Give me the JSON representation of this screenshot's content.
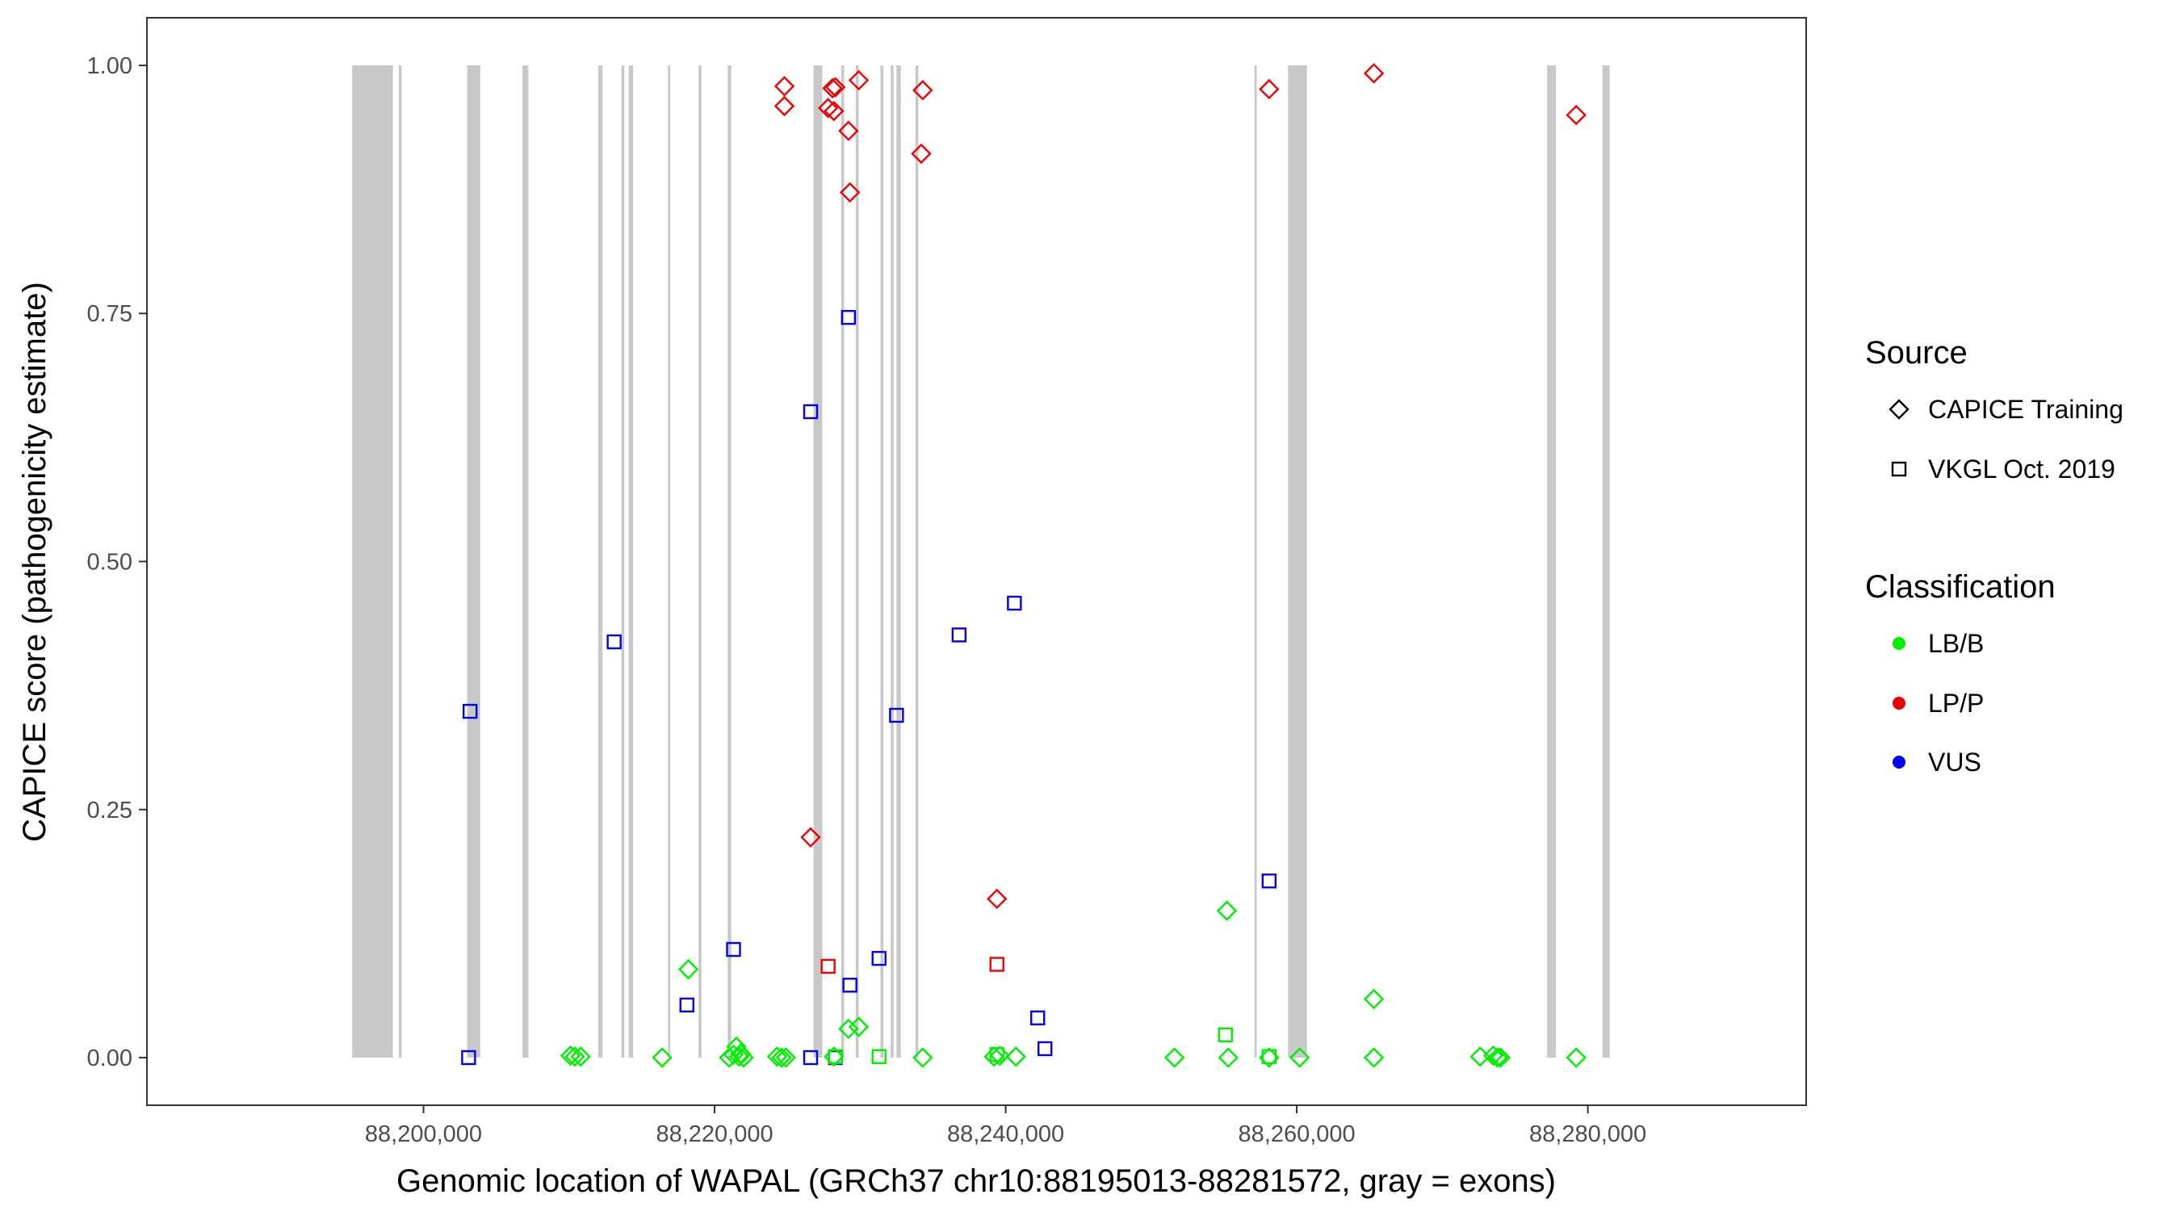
{
  "chart_data": {
    "type": "scatter",
    "title": "",
    "xlabel": "Genomic location of WAPAL (GRCh37 chr10:88195013-88281572, gray = exons)",
    "ylabel": "CAPICE score (pathogenicity estimate)",
    "xlim": [
      88181000,
      88295000
    ],
    "ylim": [
      -0.048,
      1.048
    ],
    "x_ticks": [
      88200000,
      88220000,
      88240000,
      88260000,
      88280000
    ],
    "x_tick_labels": [
      "88,200,000",
      "88,220,000",
      "88,240,000",
      "88,260,000",
      "88,280,000"
    ],
    "y_ticks": [
      0,
      0.25,
      0.5,
      0.75,
      1.0
    ],
    "y_tick_labels": [
      "0.00",
      "0.25",
      "0.50",
      "0.75",
      "1.00"
    ],
    "grid": false,
    "exons": [
      {
        "start": 88195100,
        "end": 88197900
      },
      {
        "start": 88198300,
        "end": 88198500
      },
      {
        "start": 88203000,
        "end": 88203900
      },
      {
        "start": 88206800,
        "end": 88207200
      },
      {
        "start": 88212000,
        "end": 88212300
      },
      {
        "start": 88213600,
        "end": 88213800
      },
      {
        "start": 88214100,
        "end": 88214400
      },
      {
        "start": 88216800,
        "end": 88216950
      },
      {
        "start": 88218900,
        "end": 88219100
      },
      {
        "start": 88220900,
        "end": 88221150
      },
      {
        "start": 88226800,
        "end": 88227400
      },
      {
        "start": 88228700,
        "end": 88228900
      },
      {
        "start": 88229700,
        "end": 88229900
      },
      {
        "start": 88231400,
        "end": 88231600
      },
      {
        "start": 88232100,
        "end": 88232300
      },
      {
        "start": 88232500,
        "end": 88232800
      },
      {
        "start": 88233800,
        "end": 88234000
      },
      {
        "start": 88257100,
        "end": 88257250
      },
      {
        "start": 88259400,
        "end": 88260700
      },
      {
        "start": 88277200,
        "end": 88277800
      },
      {
        "start": 88281000,
        "end": 88281500
      }
    ],
    "legends": {
      "source": {
        "title": "Source",
        "entries": [
          {
            "key": "CAPICE Training",
            "label": "CAPICE Training",
            "shape": "diamond"
          },
          {
            "key": "VKGL Oct. 2019",
            "label": "VKGL Oct. 2019",
            "shape": "square"
          }
        ]
      },
      "classification": {
        "title": "Classification",
        "entries": [
          {
            "key": "LB/B",
            "label": "LB/B",
            "color": "#00ee00"
          },
          {
            "key": "LP/P",
            "label": "LP/P",
            "color": "#ee0000"
          },
          {
            "key": "VUS",
            "label": "VUS",
            "color": "#0000ee"
          }
        ]
      }
    },
    "legend_position": "right",
    "series": [
      {
        "source": "CAPICE Training",
        "classification": "LP/P",
        "x": [
          88224800,
          88224800,
          88227800,
          88228200,
          88228100,
          88228300,
          88229200,
          88229900,
          88234300,
          88234200,
          88229300,
          88226600,
          88239400,
          88258100,
          88265300,
          88279200
        ],
        "y": [
          0.979,
          0.959,
          0.957,
          0.954,
          0.977,
          0.978,
          0.934,
          0.985,
          0.975,
          0.911,
          0.872,
          0.222,
          0.16,
          0.976,
          0.992,
          0.95
        ]
      },
      {
        "source": "VKGL Oct. 2019",
        "classification": "LP/P",
        "x": [
          88227800,
          88239400
        ],
        "y": [
          0.092,
          0.094
        ]
      },
      {
        "source": "VKGL Oct. 2019",
        "classification": "VUS",
        "x": [
          88203200,
          88203100,
          88213100,
          88218100,
          88221300,
          88226600,
          88226600,
          88228300,
          88229200,
          88229300,
          88231300,
          88232500,
          88236800,
          88240600,
          88242200,
          88242700,
          88258100
        ],
        "y": [
          0.349,
          0.0,
          0.419,
          0.053,
          0.109,
          0.651,
          0.0,
          0.0,
          0.746,
          0.073,
          0.1,
          0.345,
          0.426,
          0.458,
          0.04,
          0.009,
          0.178
        ]
      },
      {
        "source": "CAPICE Training",
        "classification": "LB/B",
        "x": [
          88210100,
          88210400,
          88210800,
          88216400,
          88218200,
          88221000,
          88221300,
          88221500,
          88221800,
          88222000,
          88221700,
          88224300,
          88224600,
          88224900,
          88228200,
          88229200,
          88229900,
          88234300,
          88239200,
          88239600,
          88240700,
          88251600,
          88255200,
          88255300,
          88258100,
          88260200,
          88265300,
          88265300,
          88272600,
          88273500,
          88273800,
          88274000,
          88279200
        ],
        "y": [
          0.002,
          0.001,
          0.001,
          0.0,
          0.089,
          0.0,
          0.003,
          0.011,
          0.004,
          0.0,
          0.001,
          0.001,
          0.0,
          0.0,
          0.001,
          0.029,
          0.031,
          0.0,
          0.001,
          0.002,
          0.001,
          0.0,
          0.148,
          0.0,
          0.0,
          0.0,
          0.059,
          0.0,
          0.001,
          0.002,
          0.0,
          0.0,
          0.0
        ]
      },
      {
        "source": "VKGL Oct. 2019",
        "classification": "LB/B",
        "x": [
          88228300,
          88231300,
          88239400,
          88255100,
          88258100
        ],
        "y": [
          0.001,
          0.001,
          0.003,
          0.023,
          0.001
        ]
      }
    ]
  }
}
